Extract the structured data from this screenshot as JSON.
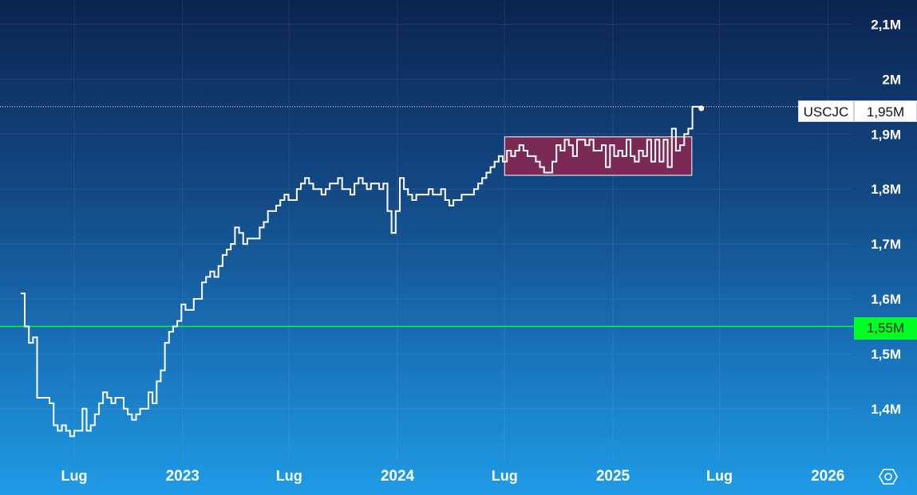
{
  "chart_data": {
    "type": "line",
    "step": true,
    "symbol": "USCJC",
    "last_value_label": "1,95M",
    "reference_line": {
      "value": 1.55,
      "label": "1,55M",
      "color": "#00ff22"
    },
    "y_ticks": [
      {
        "value": 1.4,
        "label": "1,4M"
      },
      {
        "value": 1.5,
        "label": "1,5M"
      },
      {
        "value": 1.6,
        "label": "1,6M"
      },
      {
        "value": 1.7,
        "label": "1,7M"
      },
      {
        "value": 1.8,
        "label": "1,8M"
      },
      {
        "value": 1.9,
        "label": "1,9M"
      },
      {
        "value": 2.0,
        "label": "2M"
      },
      {
        "value": 2.1,
        "label": "2,1M"
      }
    ],
    "x_ticks": [
      {
        "date": "2022-07-01",
        "label": "Lug"
      },
      {
        "date": "2023-01-01",
        "label": "2023"
      },
      {
        "date": "2023-07-01",
        "label": "Lug"
      },
      {
        "date": "2024-01-01",
        "label": "2024"
      },
      {
        "date": "2024-07-01",
        "label": "Lug"
      },
      {
        "date": "2025-01-01",
        "label": "2025"
      },
      {
        "date": "2025-07-01",
        "label": "Lug"
      },
      {
        "date": "2026-01-01",
        "label": "2026"
      }
    ],
    "highlight_range": {
      "x_start": "2024-07-01",
      "x_end": "2025-05-15",
      "y_low": 1.825,
      "y_high": 1.895,
      "color": "#7a2a55"
    },
    "grid": true,
    "y_axis_side": "right",
    "series": [
      {
        "color": "#ffffff",
        "points": [
          [
            "2022-04-01",
            1.61
          ],
          [
            "2022-04-08",
            1.55
          ],
          [
            "2022-04-15",
            1.52
          ],
          [
            "2022-04-22",
            1.53
          ],
          [
            "2022-04-29",
            1.42
          ],
          [
            "2022-05-06",
            1.42
          ],
          [
            "2022-05-13",
            1.42
          ],
          [
            "2022-05-20",
            1.41
          ],
          [
            "2022-05-27",
            1.37
          ],
          [
            "2022-06-03",
            1.36
          ],
          [
            "2022-06-10",
            1.37
          ],
          [
            "2022-06-17",
            1.36
          ],
          [
            "2022-06-24",
            1.35
          ],
          [
            "2022-07-01",
            1.36
          ],
          [
            "2022-07-08",
            1.36
          ],
          [
            "2022-07-15",
            1.4
          ],
          [
            "2022-07-22",
            1.36
          ],
          [
            "2022-07-29",
            1.37
          ],
          [
            "2022-08-05",
            1.39
          ],
          [
            "2022-08-12",
            1.41
          ],
          [
            "2022-08-19",
            1.43
          ],
          [
            "2022-08-26",
            1.42
          ],
          [
            "2022-09-02",
            1.41
          ],
          [
            "2022-09-09",
            1.42
          ],
          [
            "2022-09-16",
            1.42
          ],
          [
            "2022-09-23",
            1.4
          ],
          [
            "2022-09-30",
            1.39
          ],
          [
            "2022-10-07",
            1.38
          ],
          [
            "2022-10-14",
            1.39
          ],
          [
            "2022-10-21",
            1.4
          ],
          [
            "2022-10-28",
            1.4
          ],
          [
            "2022-11-04",
            1.43
          ],
          [
            "2022-11-11",
            1.41
          ],
          [
            "2022-11-18",
            1.45
          ],
          [
            "2022-11-25",
            1.47
          ],
          [
            "2022-12-02",
            1.52
          ],
          [
            "2022-12-09",
            1.54
          ],
          [
            "2022-12-16",
            1.55
          ],
          [
            "2022-12-23",
            1.56
          ],
          [
            "2022-12-30",
            1.59
          ],
          [
            "2023-01-06",
            1.58
          ],
          [
            "2023-01-13",
            1.58
          ],
          [
            "2023-01-20",
            1.6
          ],
          [
            "2023-01-27",
            1.6
          ],
          [
            "2023-02-03",
            1.63
          ],
          [
            "2023-02-10",
            1.64
          ],
          [
            "2023-02-17",
            1.65
          ],
          [
            "2023-02-24",
            1.64
          ],
          [
            "2023-03-03",
            1.66
          ],
          [
            "2023-03-10",
            1.68
          ],
          [
            "2023-03-17",
            1.69
          ],
          [
            "2023-03-24",
            1.7
          ],
          [
            "2023-03-31",
            1.73
          ],
          [
            "2023-04-07",
            1.72
          ],
          [
            "2023-04-14",
            1.7
          ],
          [
            "2023-04-21",
            1.71
          ],
          [
            "2023-04-28",
            1.71
          ],
          [
            "2023-05-05",
            1.71
          ],
          [
            "2023-05-12",
            1.73
          ],
          [
            "2023-05-19",
            1.74
          ],
          [
            "2023-05-26",
            1.76
          ],
          [
            "2023-06-02",
            1.76
          ],
          [
            "2023-06-09",
            1.77
          ],
          [
            "2023-06-16",
            1.78
          ],
          [
            "2023-06-23",
            1.79
          ],
          [
            "2023-06-30",
            1.78
          ],
          [
            "2023-07-07",
            1.78
          ],
          [
            "2023-07-14",
            1.8
          ],
          [
            "2023-07-21",
            1.81
          ],
          [
            "2023-07-28",
            1.82
          ],
          [
            "2023-08-04",
            1.81
          ],
          [
            "2023-08-11",
            1.8
          ],
          [
            "2023-08-18",
            1.8
          ],
          [
            "2023-08-25",
            1.79
          ],
          [
            "2023-09-01",
            1.8
          ],
          [
            "2023-09-08",
            1.81
          ],
          [
            "2023-09-15",
            1.81
          ],
          [
            "2023-09-22",
            1.82
          ],
          [
            "2023-09-29",
            1.8
          ],
          [
            "2023-10-06",
            1.8
          ],
          [
            "2023-10-13",
            1.79
          ],
          [
            "2023-10-20",
            1.81
          ],
          [
            "2023-10-27",
            1.82
          ],
          [
            "2023-11-03",
            1.81
          ],
          [
            "2023-11-10",
            1.8
          ],
          [
            "2023-11-17",
            1.81
          ],
          [
            "2023-11-24",
            1.81
          ],
          [
            "2023-12-01",
            1.8
          ],
          [
            "2023-12-08",
            1.81
          ],
          [
            "2023-12-15",
            1.76
          ],
          [
            "2023-12-22",
            1.72
          ],
          [
            "2023-12-29",
            1.76
          ],
          [
            "2024-01-05",
            1.82
          ],
          [
            "2024-01-12",
            1.8
          ],
          [
            "2024-01-19",
            1.79
          ],
          [
            "2024-01-26",
            1.78
          ],
          [
            "2024-02-02",
            1.79
          ],
          [
            "2024-02-09",
            1.79
          ],
          [
            "2024-02-16",
            1.79
          ],
          [
            "2024-02-23",
            1.8
          ],
          [
            "2024-03-01",
            1.79
          ],
          [
            "2024-03-08",
            1.79
          ],
          [
            "2024-03-15",
            1.8
          ],
          [
            "2024-03-22",
            1.78
          ],
          [
            "2024-03-29",
            1.77
          ],
          [
            "2024-04-05",
            1.78
          ],
          [
            "2024-04-12",
            1.78
          ],
          [
            "2024-04-19",
            1.79
          ],
          [
            "2024-04-26",
            1.79
          ],
          [
            "2024-05-03",
            1.79
          ],
          [
            "2024-05-10",
            1.8
          ],
          [
            "2024-05-17",
            1.81
          ],
          [
            "2024-05-24",
            1.82
          ],
          [
            "2024-05-31",
            1.83
          ],
          [
            "2024-06-07",
            1.84
          ],
          [
            "2024-06-14",
            1.85
          ],
          [
            "2024-06-21",
            1.86
          ],
          [
            "2024-06-28",
            1.85
          ],
          [
            "2024-07-05",
            1.87
          ],
          [
            "2024-07-12",
            1.86
          ],
          [
            "2024-07-19",
            1.87
          ],
          [
            "2024-07-26",
            1.88
          ],
          [
            "2024-08-02",
            1.87
          ],
          [
            "2024-08-09",
            1.86
          ],
          [
            "2024-08-16",
            1.86
          ],
          [
            "2024-08-23",
            1.85
          ],
          [
            "2024-08-30",
            1.84
          ],
          [
            "2024-09-06",
            1.83
          ],
          [
            "2024-09-13",
            1.83
          ],
          [
            "2024-09-20",
            1.85
          ],
          [
            "2024-09-27",
            1.88
          ],
          [
            "2024-10-04",
            1.87
          ],
          [
            "2024-10-11",
            1.89
          ],
          [
            "2024-10-18",
            1.88
          ],
          [
            "2024-10-25",
            1.86
          ],
          [
            "2024-11-01",
            1.89
          ],
          [
            "2024-11-08",
            1.89
          ],
          [
            "2024-11-15",
            1.88
          ],
          [
            "2024-11-22",
            1.89
          ],
          [
            "2024-11-29",
            1.87
          ],
          [
            "2024-12-06",
            1.87
          ],
          [
            "2024-12-13",
            1.88
          ],
          [
            "2024-12-20",
            1.84
          ],
          [
            "2024-12-27",
            1.88
          ],
          [
            "2025-01-03",
            1.86
          ],
          [
            "2025-01-10",
            1.87
          ],
          [
            "2025-01-17",
            1.86
          ],
          [
            "2025-01-24",
            1.89
          ],
          [
            "2025-01-31",
            1.86
          ],
          [
            "2025-02-07",
            1.85
          ],
          [
            "2025-02-14",
            1.87
          ],
          [
            "2025-02-21",
            1.86
          ],
          [
            "2025-02-28",
            1.89
          ],
          [
            "2025-03-07",
            1.85
          ],
          [
            "2025-03-14",
            1.89
          ],
          [
            "2025-03-21",
            1.85
          ],
          [
            "2025-03-28",
            1.89
          ],
          [
            "2025-04-04",
            1.84
          ],
          [
            "2025-04-11",
            1.91
          ],
          [
            "2025-04-18",
            1.87
          ],
          [
            "2025-04-25",
            1.88
          ],
          [
            "2025-05-02",
            1.9
          ],
          [
            "2025-05-09",
            1.91
          ],
          [
            "2025-05-16",
            1.95
          ],
          [
            "2025-05-23",
            1.95
          ]
        ]
      }
    ]
  }
}
